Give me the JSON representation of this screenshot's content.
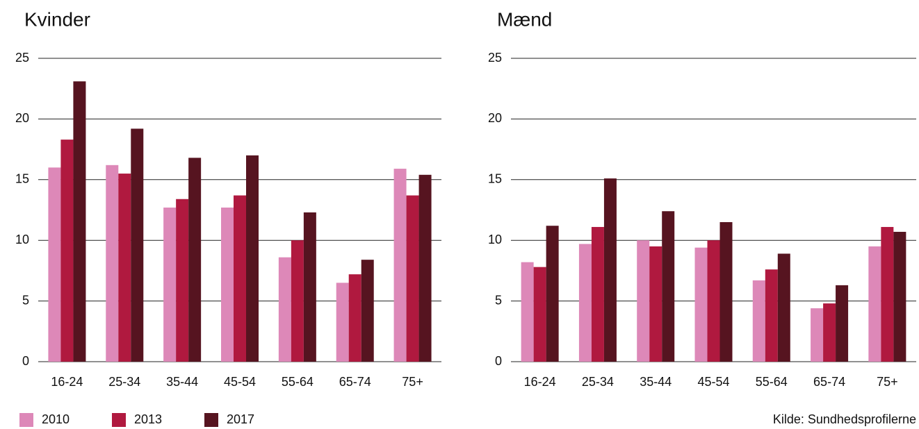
{
  "chart_data": [
    {
      "type": "bar",
      "title": "Kvinder",
      "categories": [
        "16-24",
        "25-34",
        "35-44",
        "45-54",
        "55-64",
        "65-74",
        "75+"
      ],
      "series": [
        {
          "name": "2010",
          "color": "#dd88b8",
          "values": [
            16.0,
            16.2,
            12.7,
            12.7,
            8.6,
            6.5,
            15.9
          ]
        },
        {
          "name": "2013",
          "color": "#b0193f",
          "values": [
            18.3,
            15.5,
            13.4,
            13.7,
            10.0,
            7.2,
            13.7
          ]
        },
        {
          "name": "2017",
          "color": "#561420",
          "values": [
            23.1,
            19.2,
            16.8,
            17.0,
            12.3,
            8.4,
            15.4
          ]
        }
      ],
      "ylim": [
        0,
        25
      ],
      "yticks": [
        0,
        5,
        10,
        15,
        20,
        25
      ],
      "grid": true
    },
    {
      "type": "bar",
      "title": "Mænd",
      "categories": [
        "16-24",
        "25-34",
        "35-44",
        "45-54",
        "55-64",
        "65-74",
        "75+"
      ],
      "series": [
        {
          "color": "#dd88b8",
          "values": [
            8.2,
            9.7,
            10.0,
            9.4,
            6.7,
            4.4,
            9.5
          ]
        },
        {
          "color": "#b0193f",
          "values": [
            7.8,
            11.1,
            9.5,
            10.0,
            7.6,
            4.8,
            11.1
          ]
        },
        {
          "color": "#561420",
          "values": [
            11.2,
            15.1,
            12.4,
            11.5,
            8.9,
            6.3,
            10.7
          ]
        }
      ],
      "ylim": [
        0,
        25
      ],
      "yticks": [
        0,
        5,
        10,
        15,
        20,
        25
      ],
      "grid": true
    }
  ],
  "source": "Kilde: Sundhedsprofilerne"
}
